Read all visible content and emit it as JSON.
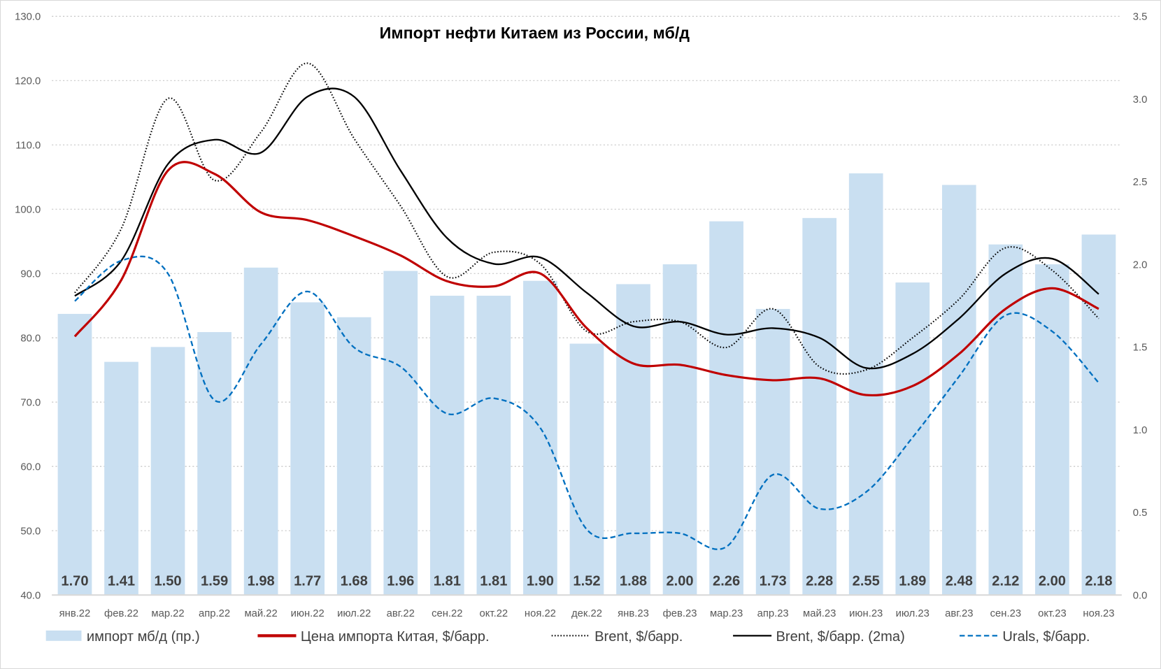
{
  "chart_data": {
    "type": "bar+line",
    "title": "Импорт нефти Китаем из России, мб/д",
    "categories": [
      "янв.22",
      "фев.22",
      "мар.22",
      "апр.22",
      "май.22",
      "июн.22",
      "июл.22",
      "авг.22",
      "сен.22",
      "окт.22",
      "ноя.22",
      "дек.22",
      "янв.23",
      "фев.23",
      "мар.23",
      "апр.23",
      "май.23",
      "июн.23",
      "июл.23",
      "авг.23",
      "сен.23",
      "окт.23",
      "ноя.23"
    ],
    "y_left": {
      "range": [
        40,
        130
      ],
      "ticks": [
        "40.0",
        "50.0",
        "60.0",
        "70.0",
        "80.0",
        "90.0",
        "100.0",
        "110.0",
        "120.0",
        "130.0"
      ]
    },
    "y_right": {
      "range": [
        0,
        3.5
      ],
      "ticks": [
        "0.0",
        "0.5",
        "1.0",
        "1.5",
        "2.0",
        "2.5",
        "3.0",
        "3.5"
      ]
    },
    "grid": true,
    "legend": "bottom",
    "bars": {
      "name": "импорт мб/д (пр.)",
      "axis": "right",
      "color": "#c9dff1",
      "values": [
        1.7,
        1.41,
        1.5,
        1.59,
        1.98,
        1.77,
        1.68,
        1.96,
        1.81,
        1.81,
        1.9,
        1.52,
        1.88,
        2.0,
        2.26,
        1.73,
        2.28,
        2.55,
        1.89,
        2.48,
        2.12,
        2.0,
        2.18
      ],
      "labels": [
        "1.70",
        "1.41",
        "1.50",
        "1.59",
        "1.98",
        "1.77",
        "1.68",
        "1.96",
        "1.81",
        "1.81",
        "1.90",
        "1.52",
        "1.88",
        "2.00",
        "2.26",
        "1.73",
        "2.28",
        "2.55",
        "1.89",
        "2.48",
        "2.12",
        "2.00",
        "2.18"
      ]
    },
    "series": [
      {
        "name": "Цена импорта Китая, $/барр.",
        "color": "#c00000",
        "style": "solid",
        "values": [
          80.2,
          89,
          106,
          105.5,
          99.5,
          98.3,
          95.8,
          92.8,
          88.8,
          88,
          90,
          81.5,
          76,
          75.8,
          74.2,
          73.4,
          73.7,
          71.1,
          72.5,
          77.5,
          84.5,
          87.7,
          84.5
        ]
      },
      {
        "name": "Brent, $/барр.",
        "color": "#000000",
        "style": "dotted",
        "values": [
          87,
          97,
          117.2,
          104.5,
          112,
          122.7,
          111,
          100.5,
          89.5,
          93.3,
          91.5,
          81,
          82.5,
          82.5,
          78.5,
          84.5,
          75.5,
          75,
          80,
          86,
          94,
          90.5,
          83
        ]
      },
      {
        "name": "Brent, $/барр. (2ma)",
        "color": "#000000",
        "style": "solid",
        "values": [
          86.5,
          92,
          107,
          110.8,
          108.8,
          117.5,
          117.5,
          106,
          95.5,
          91.5,
          92.5,
          87,
          81.8,
          82.5,
          80.5,
          81.5,
          80,
          75.3,
          77.5,
          83,
          90,
          92.3,
          86.8
        ]
      },
      {
        "name": "Urals, $/барр.",
        "color": "#0070c0",
        "style": "dashed",
        "values": [
          85.7,
          92,
          90,
          70.3,
          79,
          87.2,
          78.5,
          75.5,
          68.2,
          70.6,
          66,
          50.2,
          49.6,
          49.6,
          47.5,
          58.7,
          53.4,
          56,
          64.5,
          74,
          83.5,
          81,
          73
        ]
      }
    ]
  }
}
